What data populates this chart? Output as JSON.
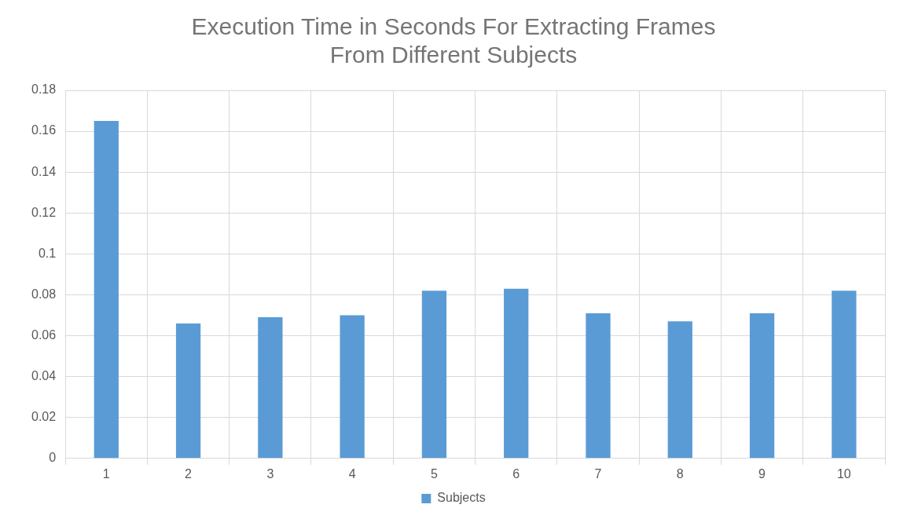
{
  "chart_data": {
    "type": "bar",
    "title": "Execution Time in Seconds For Extracting Frames\nFrom Different Subjects",
    "categories": [
      "1",
      "2",
      "3",
      "4",
      "5",
      "6",
      "7",
      "8",
      "9",
      "10"
    ],
    "series": [
      {
        "name": "Subjects",
        "color": "#5b9bd5",
        "values": [
          0.165,
          0.066,
          0.069,
          0.07,
          0.082,
          0.083,
          0.071,
          0.067,
          0.071,
          0.082
        ]
      }
    ],
    "ylim": [
      0,
      0.18
    ],
    "yticks": [
      0,
      0.02,
      0.04,
      0.06,
      0.08,
      0.1,
      0.12,
      0.14,
      0.16,
      0.18
    ],
    "grid": true,
    "legend": "bottom"
  }
}
